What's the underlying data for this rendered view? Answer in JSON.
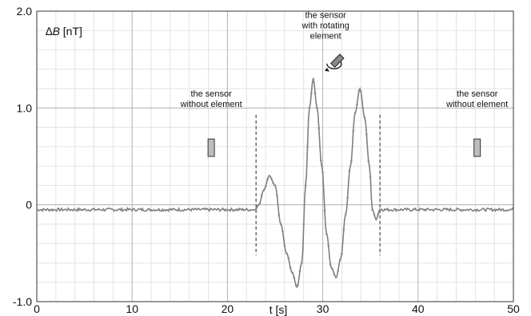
{
  "chart_data": {
    "type": "line",
    "ylabel_symbol": "∆B",
    "ylabel_unit": " [nT]",
    "xlabel": "t [s]",
    "xlim": [
      0,
      50
    ],
    "ylim": [
      -1.0,
      2.0
    ],
    "xticks": [
      0,
      10,
      20,
      30,
      40,
      50
    ],
    "xtick_labels": [
      "0",
      "10",
      "20",
      "30",
      "40",
      "50"
    ],
    "yticks": [
      -1.0,
      0,
      1.0,
      2.0
    ],
    "ytick_labels": [
      "-1.0",
      "0",
      "1.0",
      "2.0"
    ],
    "grid": true,
    "series_color": "#7f7f7f",
    "series": [
      {
        "x": [
          0,
          22.9,
          23.3,
          23.8,
          24.4,
          25.0,
          25.6,
          26.2,
          26.8,
          27.3,
          27.8,
          28.2,
          28.6,
          29.0,
          29.4,
          29.9,
          30.4,
          30.9,
          31.4,
          31.9,
          32.4,
          32.9,
          33.4,
          33.9,
          34.4,
          34.9,
          35.2,
          35.6,
          36.0,
          36.3,
          50
        ],
        "y": [
          -0.05,
          -0.05,
          0.0,
          0.15,
          0.3,
          0.2,
          -0.2,
          -0.5,
          -0.7,
          -0.85,
          -0.6,
          0.2,
          1.0,
          1.3,
          1.0,
          0.4,
          -0.3,
          -0.65,
          -0.75,
          -0.55,
          -0.1,
          0.4,
          0.95,
          1.2,
          0.9,
          0.4,
          -0.05,
          -0.15,
          -0.05,
          -0.05,
          -0.05
        ]
      }
    ],
    "dashed_markers_x": [
      23.0,
      36.0
    ],
    "annotations": [
      {
        "lines": [
          "the sensor",
          "without element"
        ],
        "x": 18.3,
        "y": 1.12
      },
      {
        "lines": [
          "the sensor",
          "with rotating",
          "element"
        ],
        "x": 30.3,
        "y": 1.93
      },
      {
        "lines": [
          "the sensor",
          "without element"
        ],
        "x": 46.2,
        "y": 1.12
      }
    ],
    "sensor_boxes": [
      {
        "x": 18.3,
        "y0": 0.5,
        "y1": 0.68
      },
      {
        "x": 46.2,
        "y0": 0.5,
        "y1": 0.68
      }
    ],
    "rotating_icon": {
      "x": 31.2,
      "y": 1.45,
      "name": "rotating-sensor-icon"
    }
  }
}
